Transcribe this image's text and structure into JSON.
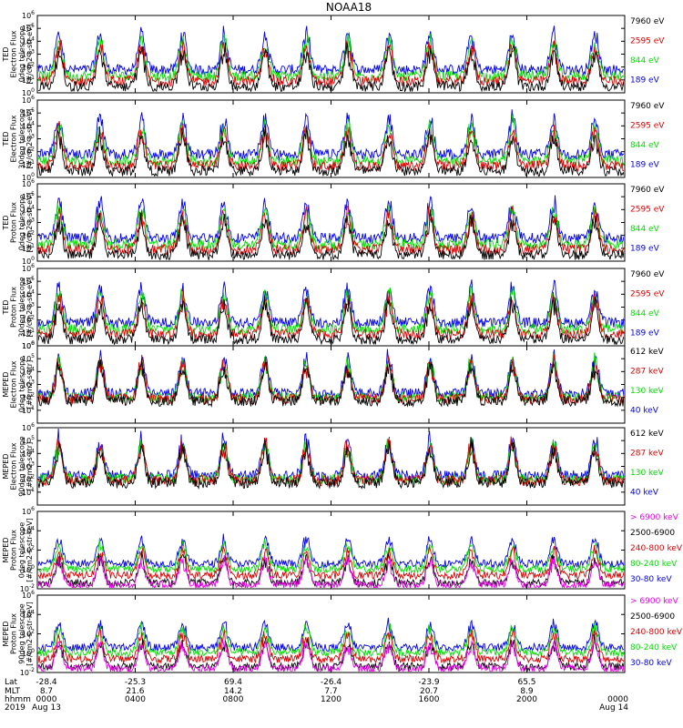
{
  "title": "NOAA18",
  "colors": {
    "black": "#000000",
    "red": "#dd0000",
    "green": "#00dd00",
    "blue": "#0000ee",
    "magenta": "#ee00ee"
  },
  "chart_data": [
    {
      "panel": 1,
      "type": "line",
      "ylabel": [
        "TED",
        "Electron Flux",
        "0deg telescope",
        "[#/cm2-s-str-eV]"
      ],
      "ylim": [
        1,
        1000000
      ],
      "yscale": "log",
      "y_ticks": [
        "10^0",
        "10^1",
        "10^2",
        "10^3",
        "10^4",
        "10^5",
        "10^6"
      ],
      "legend": [
        {
          "label": "7960 eV",
          "color": "black"
        },
        {
          "label": "2595 eV",
          "color": "red"
        },
        {
          "label": "844 eV",
          "color": "green"
        },
        {
          "label": "189 eV",
          "color": "blue"
        }
      ]
    },
    {
      "panel": 2,
      "type": "line",
      "ylabel": [
        "TED",
        "Electron Flux",
        "30deg telescope",
        "[#/cm2-s-str-eV]"
      ],
      "ylim": [
        1,
        1000000
      ],
      "yscale": "log",
      "y_ticks": [
        "10^0",
        "10^1",
        "10^2",
        "10^3",
        "10^4",
        "10^5",
        "10^6"
      ],
      "legend": [
        {
          "label": "7960 eV",
          "color": "black"
        },
        {
          "label": "2595 eV",
          "color": "red"
        },
        {
          "label": "844 eV",
          "color": "green"
        },
        {
          "label": "189 eV",
          "color": "blue"
        }
      ]
    },
    {
      "panel": 3,
      "type": "line",
      "ylabel": [
        "TED",
        "Proton Flux",
        "0deg telescope",
        "[#/cm2-s-str-eV]"
      ],
      "ylim": [
        1,
        1000000
      ],
      "yscale": "log",
      "y_ticks": [
        "10^0",
        "10^1",
        "10^2",
        "10^3",
        "10^4",
        "10^5",
        "10^6"
      ],
      "legend": [
        {
          "label": "7960 eV",
          "color": "black"
        },
        {
          "label": "2595 eV",
          "color": "red"
        },
        {
          "label": "844 eV",
          "color": "green"
        },
        {
          "label": "189 eV",
          "color": "blue"
        }
      ]
    },
    {
      "panel": 4,
      "type": "line",
      "ylabel": [
        "TED",
        "Proton Flux",
        "30deg telescope",
        "[#/cm2-s-str-eV]"
      ],
      "ylim": [
        1,
        1000000
      ],
      "yscale": "log",
      "y_ticks": [
        "10^0",
        "10^1",
        "10^2",
        "10^3",
        "10^4",
        "10^5",
        "10^6"
      ],
      "legend": [
        {
          "label": "7960 eV",
          "color": "black"
        },
        {
          "label": "2595 eV",
          "color": "red"
        },
        {
          "label": "844 eV",
          "color": "green"
        },
        {
          "label": "189 eV",
          "color": "blue"
        }
      ]
    },
    {
      "panel": 5,
      "type": "line",
      "ylabel": [
        "MEPED",
        "Electron Flux",
        "0deg telescope",
        "[#/cm2-s-str]"
      ],
      "ylim": [
        1,
        1000000
      ],
      "yscale": "log",
      "y_ticks": [
        "10^1",
        "10^2",
        "10^3",
        "10^4",
        "10^5",
        "10^6"
      ],
      "legend": [
        {
          "label": "612 keV",
          "color": "black"
        },
        {
          "label": "287 keV",
          "color": "red"
        },
        {
          "label": "130 keV",
          "color": "green"
        },
        {
          "label": "40 keV",
          "color": "blue"
        }
      ]
    },
    {
      "panel": 6,
      "type": "line",
      "ylabel": [
        "MEPED",
        "Electron Flux",
        "90deg telescope",
        "[#/cm2-s-str]"
      ],
      "ylim": [
        1,
        1000000
      ],
      "yscale": "log",
      "y_ticks": [
        "10^1",
        "10^2",
        "10^3",
        "10^4",
        "10^5",
        "10^6"
      ],
      "legend": [
        {
          "label": "612 keV",
          "color": "black"
        },
        {
          "label": "287 keV",
          "color": "red"
        },
        {
          "label": "130 keV",
          "color": "green"
        },
        {
          "label": "40 keV",
          "color": "blue"
        }
      ]
    },
    {
      "panel": 7,
      "type": "line",
      "ylabel": [
        "MEPED",
        "Proton Flux",
        "0deg telescope",
        "[#/cm2-s-str-keV]"
      ],
      "ylim": [
        0.01,
        1000000
      ],
      "yscale": "log",
      "y_ticks": [
        "10^-2",
        "10^0",
        "10^2",
        "10^4",
        "10^6"
      ],
      "legend": [
        {
          "label": "> 6900 keV",
          "color": "magenta"
        },
        {
          "label": "2500-6900",
          "color": "black"
        },
        {
          "label": "240-800 keV",
          "color": "red"
        },
        {
          "label": "80-240 keV",
          "color": "green"
        },
        {
          "label": "30-80 keV",
          "color": "blue"
        }
      ]
    },
    {
      "panel": 8,
      "type": "line",
      "ylabel": [
        "MEPED",
        "Proton Flux",
        "90deg telescope",
        "[#/cm2-s-str-keV]"
      ],
      "ylim": [
        0.01,
        1000000
      ],
      "yscale": "log",
      "y_ticks": [
        "10^-2",
        "10^0",
        "10^2",
        "10^4",
        "10^6"
      ],
      "legend": [
        {
          "label": "> 6900 keV",
          "color": "magenta"
        },
        {
          "label": "2500-6900",
          "color": "black"
        },
        {
          "label": "240-800 keV",
          "color": "red"
        },
        {
          "label": "80-240 keV",
          "color": "green"
        },
        {
          "label": "30-80 keV",
          "color": "blue"
        }
      ]
    }
  ],
  "x_axis": {
    "row_labels": [
      "Lat",
      "MLT",
      "hhmm",
      "2019"
    ],
    "ticks": [
      {
        "hour": 0,
        "lat": "-28.4",
        "mlt": "8.7",
        "hhmm": "0000",
        "date": "Aug 13"
      },
      {
        "hour": 4,
        "lat": "-25.3",
        "mlt": "21.6",
        "hhmm": "0400",
        "date": ""
      },
      {
        "hour": 8,
        "lat": "69.4",
        "mlt": "14.2",
        "hhmm": "0800",
        "date": ""
      },
      {
        "hour": 12,
        "lat": "-26.4",
        "mlt": "7.7",
        "hhmm": "1200",
        "date": ""
      },
      {
        "hour": 16,
        "lat": "-23.9",
        "mlt": "20.7",
        "hhmm": "1600",
        "date": ""
      },
      {
        "hour": 20,
        "lat": "65.5",
        "mlt": "8.9",
        "hhmm": "2000",
        "date": ""
      },
      {
        "hour": 24,
        "lat": "",
        "mlt": "",
        "hhmm": "0000",
        "date": "Aug 14"
      }
    ],
    "range_hours": [
      0,
      24
    ]
  }
}
